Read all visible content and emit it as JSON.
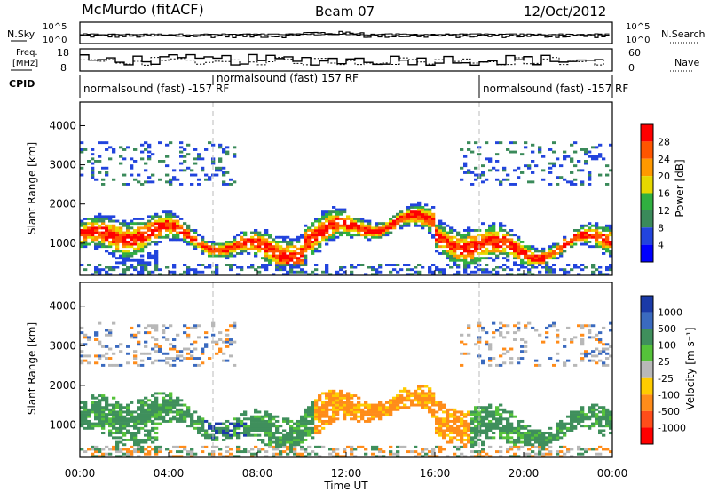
{
  "header": {
    "station": "McMurdo (fitACF)",
    "beam": "Beam 07",
    "date": "12/Oct/2012"
  },
  "top_panels": {
    "nsky_label": "N.Sky",
    "nsearch_label": "N.Search",
    "noise_ticks": [
      "10^5",
      "10^0"
    ],
    "freq_label_1": "Freq.",
    "freq_label_2": "[MHz]",
    "freq_ticks": [
      "18",
      "8"
    ],
    "nave_label": "Nave",
    "nave_ticks": [
      "60",
      "0"
    ],
    "cpid_label": "CPID",
    "cpid_segments": [
      {
        "label": "normalsound (fast) -157 RF",
        "start_hour": 0.0,
        "end_hour": 6.0
      },
      {
        "label": "normalsound (fast) 157 RF",
        "start_hour": 6.0,
        "end_hour": 18.0
      },
      {
        "label": "normalsound (fast) -157 RF",
        "start_hour": 18.0,
        "end_hour": 24.0
      }
    ]
  },
  "chart_data": [
    {
      "type": "heatmap",
      "name": "Power",
      "ylabel": "Slant Range [km]",
      "xlabel": "Time UT",
      "xlim_hours": [
        0,
        24
      ],
      "ylim_km": [
        180,
        4600
      ],
      "y_ticks": [
        1000,
        2000,
        3000,
        4000
      ],
      "colorbar": {
        "label": "Power [dB]",
        "ticks": [
          "4",
          "8",
          "12",
          "16",
          "20",
          "24",
          "28"
        ],
        "colors": [
          "#0000ff",
          "#2244dd",
          "#3a8a5a",
          "#30b040",
          "#e6d800",
          "#ff9900",
          "#ff5500",
          "#ff0000"
        ]
      }
    },
    {
      "type": "heatmap",
      "name": "Velocity",
      "ylabel": "Slant Range [km]",
      "xlabel": "Time UT",
      "xlim_hours": [
        0,
        24
      ],
      "ylim_km": [
        180,
        4600
      ],
      "y_ticks": [
        1000,
        2000,
        3000,
        4000
      ],
      "colorbar": {
        "label": "Velocity [m s⁻¹]",
        "ticks": [
          "1000",
          "500",
          "100",
          "25",
          "-25",
          "-100",
          "-500",
          "-1000"
        ],
        "colors": [
          "#1a3aa8",
          "#3a6abf",
          "#3f8f5c",
          "#55c23a",
          "#b8b8b8",
          "#ffcc00",
          "#ff8c1a",
          "#ff4d1a",
          "#ff0000"
        ]
      }
    }
  ],
  "x_axis": {
    "ticks": [
      "00:00",
      "04:00",
      "08:00",
      "12:00",
      "16:00",
      "20:00",
      "00:00"
    ],
    "label": "Time UT"
  },
  "colors": {
    "frame": "#000000",
    "dash": "#bbbbbb"
  }
}
